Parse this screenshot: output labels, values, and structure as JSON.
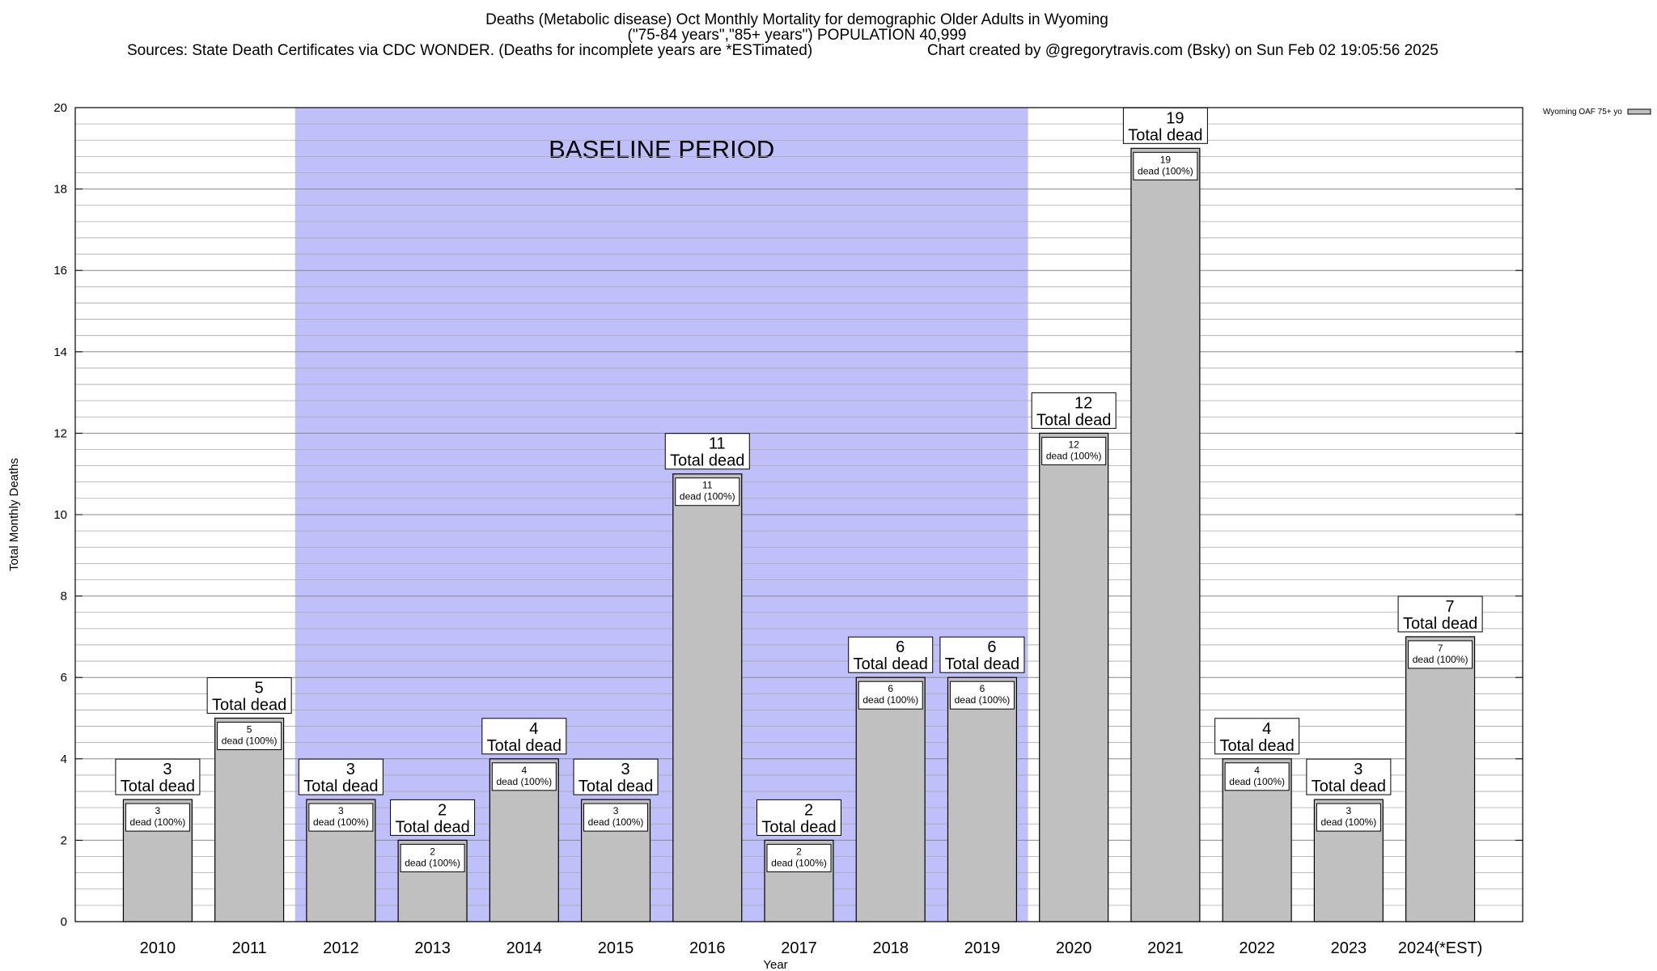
{
  "header": {
    "title": "Deaths (Metabolic disease) Oct Monthly Mortality for demographic Older Adults in Wyoming",
    "subtitle": "(\"75-84 years\",\"85+ years\") POPULATION 40,999",
    "sources": "Sources: State Death Certificates via CDC WONDER. (Deaths for incomplete years are *ESTimated)",
    "credit": "Chart created by @gregorytravis.com (Bsky) on Sun Feb 02 19:05:56 2025"
  },
  "chart_data": {
    "type": "bar",
    "xlabel": "Year",
    "ylabel": "Total Monthly Deaths",
    "ylim": [
      0,
      20
    ],
    "yticks": [
      0,
      2,
      4,
      6,
      8,
      10,
      12,
      14,
      16,
      18,
      20
    ],
    "minor_grid_step": 0.4,
    "grid": true,
    "categories": [
      "2010",
      "2011",
      "2012",
      "2013",
      "2014",
      "2015",
      "2016",
      "2017",
      "2018",
      "2019",
      "2020",
      "2021",
      "2022",
      "2023",
      "2024(*EST)"
    ],
    "series": [
      {
        "name": "Wyoming OAF 75+ yo",
        "color": "#c0c0c0",
        "values": [
          3,
          5,
          3,
          2,
          4,
          3,
          11,
          2,
          6,
          6,
          12,
          19,
          4,
          3,
          7
        ]
      }
    ],
    "bar_label_total_text": "Total dead",
    "bar_label_inner_text": "dead (100%)",
    "legend_position": "top-right",
    "baseline_period": {
      "label": "BASELINE PERIOD",
      "from": "2012",
      "to": "2019",
      "color": "#bfbffa"
    }
  }
}
